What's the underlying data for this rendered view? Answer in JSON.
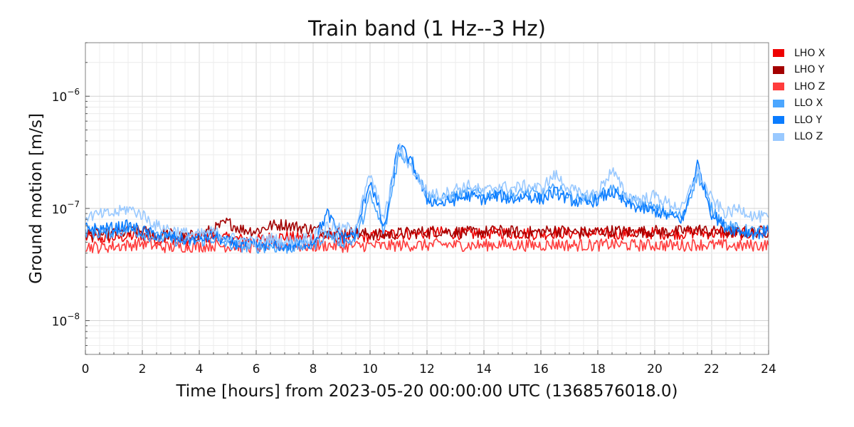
{
  "chart_data": {
    "type": "line",
    "title": "Train band (1 Hz--3 Hz)",
    "xlabel": "Time [hours] from 2023-05-20 00:00:00 UTC (1368576018.0)",
    "ylabel": "Ground motion [m/s]",
    "xlim": [
      0,
      24
    ],
    "ylim": [
      5e-09,
      3e-06
    ],
    "yscale": "log",
    "grid": true,
    "legend_position": "right-outside-top",
    "x_ticks": [
      0,
      2,
      4,
      6,
      8,
      10,
      12,
      14,
      16,
      18,
      20,
      22,
      24
    ],
    "x_tick_labels": [
      "0",
      "2",
      "4",
      "6",
      "8",
      "10",
      "12",
      "14",
      "16",
      "18",
      "20",
      "22",
      "24"
    ],
    "y_ticks": [
      1e-08,
      1e-07,
      1e-06
    ],
    "y_tick_labels": [
      {
        "base": "10",
        "exp": "−8"
      },
      {
        "base": "10",
        "exp": "−7"
      },
      {
        "base": "10",
        "exp": "−6"
      }
    ],
    "x": [
      0,
      0.5,
      1,
      1.5,
      2,
      2.5,
      3,
      3.5,
      4,
      4.5,
      5,
      5.5,
      6,
      6.5,
      7,
      7.5,
      8,
      8.5,
      9,
      9.5,
      10,
      10.5,
      11,
      11.5,
      12,
      12.5,
      13,
      13.5,
      14,
      14.5,
      15,
      15.5,
      16,
      16.5,
      17,
      17.5,
      18,
      18.5,
      19,
      19.5,
      20,
      20.5,
      21,
      21.5,
      22,
      22.5,
      23,
      23.5,
      24
    ],
    "series": [
      {
        "name": "LHO X",
        "color": "#ee0000",
        "values": [
          5.5e-08,
          5.4e-08,
          5.5e-08,
          5.6e-08,
          5.8e-08,
          5.3e-08,
          5.4e-08,
          5.2e-08,
          5.5e-08,
          5.6e-08,
          5.4e-08,
          5.3e-08,
          5.2e-08,
          5.5e-08,
          5.6e-08,
          5.4e-08,
          5.5e-08,
          5.6e-08,
          5.5e-08,
          5.6e-08,
          5.6e-08,
          5.8e-08,
          6e-08,
          5.9e-08,
          6e-08,
          6.1e-08,
          6e-08,
          5.9e-08,
          6e-08,
          6.1e-08,
          6e-08,
          6e-08,
          5.9e-08,
          6.1e-08,
          6e-08,
          6e-08,
          6e-08,
          5.9e-08,
          6e-08,
          6.1e-08,
          6e-08,
          6e-08,
          6e-08,
          6.1e-08,
          6e-08,
          6e-08,
          5.9e-08,
          6e-08,
          6.1e-08
        ]
      },
      {
        "name": "LHO Y",
        "color": "#a30000",
        "values": [
          6e-08,
          5.8e-08,
          6e-08,
          6.1e-08,
          6.3e-08,
          5.8e-08,
          5.9e-08,
          5.6e-08,
          5.8e-08,
          6.5e-08,
          7.5e-08,
          6.5e-08,
          6.3e-08,
          7e-08,
          7.2e-08,
          6.8e-08,
          6.5e-08,
          6.3e-08,
          6.2e-08,
          6e-08,
          5.9e-08,
          5.8e-08,
          6e-08,
          6.1e-08,
          6.2e-08,
          6.3e-08,
          6.2e-08,
          6.1e-08,
          6.2e-08,
          6.3e-08,
          6.2e-08,
          6.1e-08,
          6.2e-08,
          6.4e-08,
          6.2e-08,
          6.1e-08,
          6.2e-08,
          6.3e-08,
          6.2e-08,
          6.2e-08,
          6.3e-08,
          6.1e-08,
          6.3e-08,
          6.5e-08,
          6.2e-08,
          6.2e-08,
          6.1e-08,
          6.2e-08,
          6.2e-08
        ]
      },
      {
        "name": "LHO Z",
        "color": "#ff3c3c",
        "values": [
          4.6e-08,
          4.5e-08,
          4.6e-08,
          4.7e-08,
          4.9e-08,
          4.6e-08,
          4.5e-08,
          4.6e-08,
          4.6e-08,
          4.7e-08,
          4.6e-08,
          4.6e-08,
          4.5e-08,
          4.6e-08,
          4.7e-08,
          4.6e-08,
          4.6e-08,
          4.7e-08,
          4.6e-08,
          4.6e-08,
          4.7e-08,
          4.6e-08,
          4.7e-08,
          4.7e-08,
          4.7e-08,
          4.8e-08,
          4.7e-08,
          4.7e-08,
          4.7e-08,
          4.8e-08,
          4.7e-08,
          4.7e-08,
          4.7e-08,
          4.8e-08,
          4.7e-08,
          4.7e-08,
          4.7e-08,
          4.8e-08,
          4.7e-08,
          4.7e-08,
          4.7e-08,
          4.7e-08,
          4.7e-08,
          4.8e-08,
          4.7e-08,
          4.7e-08,
          4.6e-08,
          4.7e-08,
          4.7e-08
        ]
      },
      {
        "name": "LLO X",
        "color": "#4ba6ff",
        "values": [
          6.3e-08,
          6e-08,
          6.2e-08,
          6.5e-08,
          6e-08,
          5.5e-08,
          5.3e-08,
          5e-08,
          5.1e-08,
          5.4e-08,
          4.8e-08,
          4.6e-08,
          4.5e-08,
          4.6e-08,
          4.4e-08,
          4.6e-08,
          4.7e-08,
          6e-08,
          5e-08,
          5.2e-08,
          1.3e-07,
          6e-08,
          3e-07,
          2.6e-07,
          1.3e-07,
          1.2e-07,
          1.3e-07,
          1.4e-07,
          1.3e-07,
          1.4e-07,
          1.3e-07,
          1.4e-07,
          1.3e-07,
          1.5e-07,
          1.3e-07,
          1.2e-07,
          1.3e-07,
          1.5e-07,
          1.2e-07,
          1.1e-07,
          1e-07,
          9e-08,
          8.5e-08,
          2e-07,
          1e-07,
          7e-08,
          6.5e-08,
          6.2e-08,
          6.3e-08
        ]
      },
      {
        "name": "LLO Y",
        "color": "#0a7cff",
        "values": [
          6.8e-08,
          6.5e-08,
          6.7e-08,
          7e-08,
          6.3e-08,
          5.8e-08,
          5.6e-08,
          5.3e-08,
          5.4e-08,
          5.7e-08,
          5e-08,
          4.8e-08,
          4.7e-08,
          4.8e-08,
          4.6e-08,
          4.8e-08,
          5e-08,
          9e-08,
          5.5e-08,
          6e-08,
          1.8e-07,
          6.5e-08,
          3.8e-07,
          2.4e-07,
          1.2e-07,
          1.1e-07,
          1.2e-07,
          1.3e-07,
          1.2e-07,
          1.3e-07,
          1.2e-07,
          1.3e-07,
          1.2e-07,
          1.4e-07,
          1.2e-07,
          1.1e-07,
          1.2e-07,
          1.4e-07,
          1.1e-07,
          1e-07,
          9.5e-08,
          8.5e-08,
          8e-08,
          2.5e-07,
          9e-08,
          6.8e-08,
          6.3e-08,
          6e-08,
          6.1e-08
        ]
      },
      {
        "name": "LLO Z",
        "color": "#99c9ff",
        "values": [
          8.5e-08,
          8.8e-08,
          9e-08,
          1e-07,
          8.8e-08,
          7e-08,
          6.5e-08,
          6e-08,
          5.8e-08,
          6.2e-08,
          5.5e-08,
          5.2e-08,
          5e-08,
          5.4e-08,
          5e-08,
          5.3e-08,
          5.6e-08,
          7e-08,
          6.5e-08,
          7e-08,
          2e-07,
          8e-08,
          3.5e-07,
          2.2e-07,
          1.4e-07,
          1.3e-07,
          1.5e-07,
          1.6e-07,
          1.4e-07,
          1.6e-07,
          1.5e-07,
          1.6e-07,
          1.5e-07,
          2e-07,
          1.5e-07,
          1.3e-07,
          1.4e-07,
          2.2e-07,
          1.3e-07,
          1.2e-07,
          1.3e-07,
          1.1e-07,
          1e-07,
          2.2e-07,
          1.2e-07,
          9e-08,
          1e-07,
          8.5e-08,
          8.3e-08
        ]
      }
    ]
  }
}
